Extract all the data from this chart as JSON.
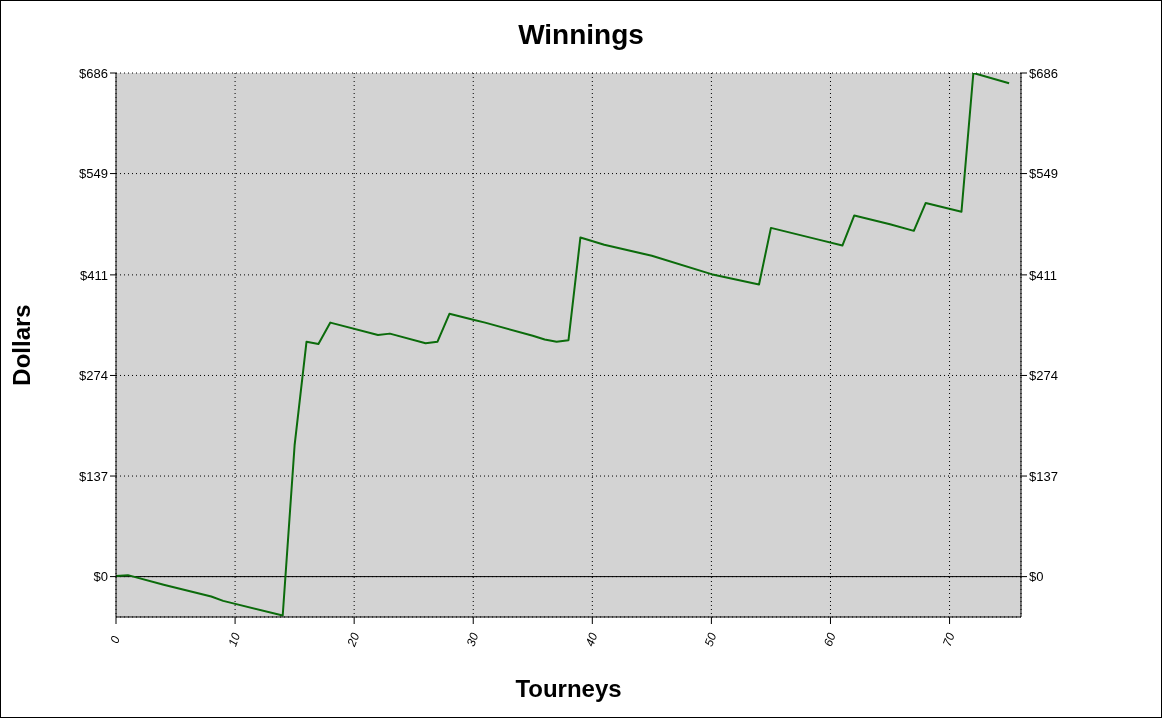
{
  "chart_data": {
    "type": "line",
    "title": "Winnings",
    "xlabel": "Tourneys",
    "ylabel": "Dollars",
    "x": [
      0,
      1,
      4,
      8,
      9,
      14,
      15,
      16,
      17,
      18,
      22,
      23,
      26,
      27,
      28,
      30,
      31,
      35,
      36,
      37,
      38,
      39,
      41,
      45,
      50,
      54,
      55,
      59,
      61,
      62,
      65,
      67,
      68,
      71,
      72,
      75
    ],
    "series": [
      {
        "color": "#0b6b0b",
        "values": [
          1,
          2,
          -11,
          -27,
          -33,
          -53,
          179,
          320,
          317,
          346,
          329,
          331,
          318,
          320,
          358,
          350,
          346,
          328,
          323,
          320,
          322,
          462,
          452,
          437,
          412,
          398,
          475,
          459,
          451,
          492,
          480,
          471,
          509,
          497,
          686,
          672
        ]
      }
    ],
    "xlim": [
      0,
      76
    ],
    "xticks": [
      0,
      10,
      20,
      30,
      40,
      50,
      60,
      70
    ],
    "ylim": [
      -55,
      686
    ],
    "yticks": [
      {
        "value": 0,
        "label": "$0"
      },
      {
        "value": 137,
        "label": "$137"
      },
      {
        "value": 274,
        "label": "$274"
      },
      {
        "value": 411,
        "label": "$411"
      },
      {
        "value": 549,
        "label": "$549"
      },
      {
        "value": 686,
        "label": "$686"
      }
    ],
    "y2lim": [
      -55,
      686
    ],
    "y2ticks": [
      {
        "value": 0,
        "label": "$0"
      },
      {
        "value": 137,
        "label": "$137"
      },
      {
        "value": 274,
        "label": "$274"
      },
      {
        "value": 411,
        "label": "$411"
      },
      {
        "value": 549,
        "label": "$549"
      },
      {
        "value": 686,
        "label": "$686"
      }
    ],
    "ref_lines": [
      {
        "axis": "y",
        "value": 0,
        "color": "#000000"
      }
    ],
    "grid": true,
    "legend": false
  }
}
